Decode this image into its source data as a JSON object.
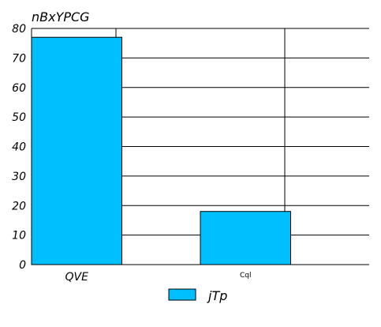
{
  "chart_data": {
    "type": "bar",
    "title": "nBxYPCG",
    "xlabel": "",
    "ylabel": "",
    "categories": [
      "QVE",
      "Cql"
    ],
    "series": [
      {
        "name": "jTp",
        "values": [
          77,
          18
        ],
        "color": "#00bfff"
      }
    ],
    "ylim": [
      0,
      80
    ],
    "yticks": [
      "0",
      "10",
      "20",
      "30",
      "40",
      "50",
      "60",
      "70",
      "80"
    ],
    "grid": true,
    "legend": "bottom-center"
  }
}
